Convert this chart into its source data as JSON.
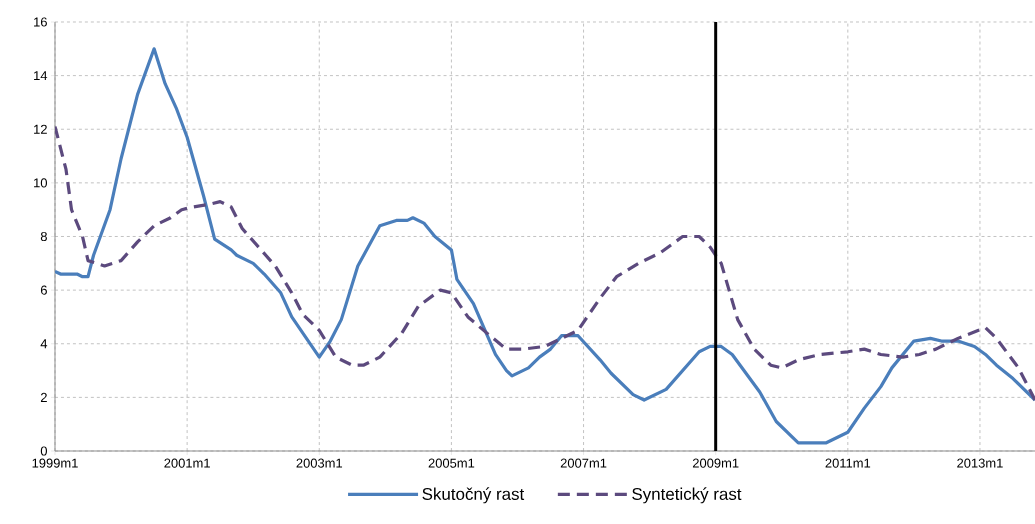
{
  "chart_data": {
    "type": "line",
    "xlim": [
      "1999-01",
      "2013-11"
    ],
    "ylim": [
      0,
      16
    ],
    "xticks": [
      {
        "value": "1999-01",
        "label": "1999m1"
      },
      {
        "value": "2001-01",
        "label": "2001m1"
      },
      {
        "value": "2003-01",
        "label": "2003m1"
      },
      {
        "value": "2005-01",
        "label": "2005m1"
      },
      {
        "value": "2007-01",
        "label": "2007m1"
      },
      {
        "value": "2009-01",
        "label": "2009m1"
      },
      {
        "value": "2011-01",
        "label": "2011m1"
      },
      {
        "value": "2013-01",
        "label": "2013m1"
      }
    ],
    "yticks": [
      0,
      2,
      4,
      6,
      8,
      10,
      12,
      14,
      16
    ],
    "grid": true,
    "legend": "bottom",
    "ref_lines": [
      {
        "axis": "x",
        "value": "2009-01",
        "color": "#000000"
      }
    ],
    "series": [
      {
        "name": "Skutočný rast",
        "color": "#4a7ebb",
        "line_style": "solid",
        "x": [
          "1999-01",
          "1999-02",
          "1999-05",
          "1999-06",
          "1999-07",
          "1999-08",
          "1999-11",
          "2000-01",
          "2000-04",
          "2000-07",
          "2000-09",
          "2000-11",
          "2001-01",
          "2001-04",
          "2001-06",
          "2001-09",
          "2001-10",
          "2002-01",
          "2002-03",
          "2002-06",
          "2002-08",
          "2003-01",
          "2003-03",
          "2003-05",
          "2003-08",
          "2003-12",
          "2004-03",
          "2004-05",
          "2004-06",
          "2004-08",
          "2004-10",
          "2005-01",
          "2005-02",
          "2005-05",
          "2005-09",
          "2005-11",
          "2005-12",
          "2006-03",
          "2006-05",
          "2006-07",
          "2006-09",
          "2006-12",
          "2007-04",
          "2007-06",
          "2007-10",
          "2007-12",
          "2008-04",
          "2008-07",
          "2008-10",
          "2008-12",
          "2009-02",
          "2009-04",
          "2009-09",
          "2009-12",
          "2010-04",
          "2010-09",
          "2011-01",
          "2011-04",
          "2011-07",
          "2011-09",
          "2012-01",
          "2012-04",
          "2012-06",
          "2012-09",
          "2012-12",
          "2013-02",
          "2013-04",
          "2013-07",
          "2013-11"
        ],
        "values": [
          6.7,
          6.6,
          6.6,
          6.5,
          6.5,
          7.3,
          9.0,
          10.9,
          13.3,
          15.0,
          13.7,
          12.8,
          11.7,
          9.5,
          7.9,
          7.5,
          7.3,
          7.0,
          6.6,
          5.9,
          5.0,
          3.5,
          4.1,
          4.9,
          6.9,
          8.4,
          8.6,
          8.6,
          8.7,
          8.5,
          8.0,
          7.5,
          6.4,
          5.5,
          3.6,
          3.0,
          2.8,
          3.1,
          3.5,
          3.8,
          4.3,
          4.3,
          3.4,
          2.9,
          2.1,
          1.9,
          2.3,
          3.0,
          3.7,
          3.9,
          3.9,
          3.6,
          2.2,
          1.1,
          0.3,
          0.3,
          0.7,
          1.6,
          2.4,
          3.1,
          4.1,
          4.2,
          4.1,
          4.1,
          3.9,
          3.6,
          3.2,
          2.7,
          1.9
        ]
      },
      {
        "name": "Syntetický rast",
        "color": "#5c4a7e",
        "line_style": "dashed",
        "x": [
          "1999-01",
          "1999-03",
          "1999-04",
          "1999-06",
          "1999-07",
          "1999-10",
          "2000-01",
          "2000-04",
          "2000-07",
          "2000-10",
          "2000-12",
          "2001-02",
          "2001-05",
          "2001-07",
          "2001-09",
          "2001-11",
          "2002-02",
          "2002-05",
          "2002-08",
          "2002-10",
          "2003-01",
          "2003-04",
          "2003-07",
          "2003-09",
          "2003-12",
          "2004-04",
          "2004-07",
          "2004-11",
          "2005-01",
          "2005-04",
          "2005-08",
          "2005-11",
          "2006-02",
          "2006-06",
          "2006-09",
          "2006-12",
          "2007-04",
          "2007-07",
          "2007-11",
          "2008-03",
          "2008-07",
          "2008-10",
          "2008-12",
          "2009-02",
          "2009-05",
          "2009-08",
          "2009-11",
          "2010-01",
          "2010-04",
          "2010-08",
          "2011-01",
          "2011-04",
          "2011-07",
          "2011-11",
          "2012-02",
          "2012-05",
          "2012-09",
          "2013-02",
          "2013-04",
          "2013-08",
          "2013-11"
        ],
        "values": [
          12.1,
          10.5,
          9.0,
          8.0,
          7.1,
          6.9,
          7.1,
          7.8,
          8.4,
          8.7,
          9.0,
          9.1,
          9.2,
          9.3,
          9.1,
          8.3,
          7.6,
          6.9,
          5.9,
          5.1,
          4.5,
          3.5,
          3.2,
          3.2,
          3.5,
          4.4,
          5.4,
          6.0,
          5.9,
          5.0,
          4.3,
          3.8,
          3.8,
          3.9,
          4.2,
          4.5,
          5.7,
          6.5,
          7.0,
          7.4,
          8.0,
          8.0,
          7.6,
          7.0,
          4.9,
          3.8,
          3.2,
          3.1,
          3.4,
          3.6,
          3.7,
          3.8,
          3.6,
          3.5,
          3.6,
          3.8,
          4.2,
          4.6,
          4.2,
          3.1,
          1.9
        ]
      }
    ]
  }
}
